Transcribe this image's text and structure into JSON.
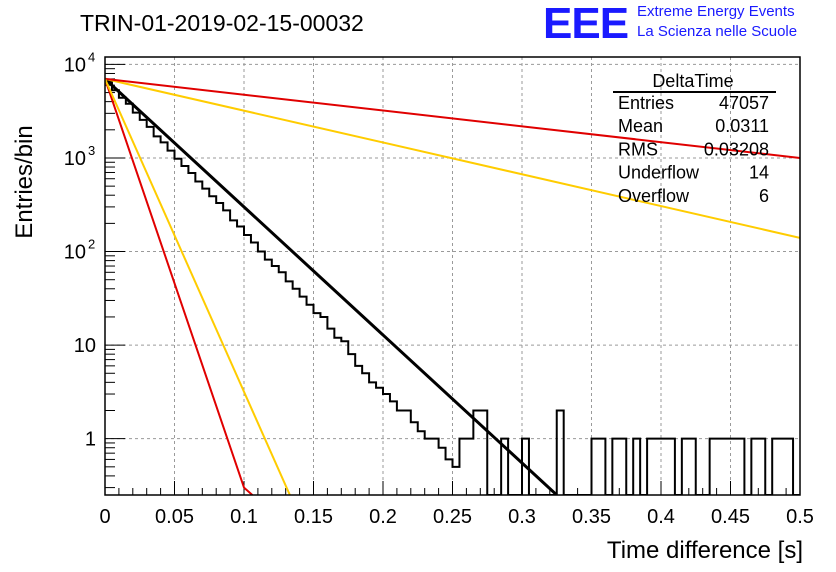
{
  "title": "TRIN-01-2019-02-15-00032",
  "logo": {
    "letters": "EEE",
    "line1": "Extreme Energy Events",
    "line2": "La Scienza nelle Scuole",
    "color": "#1a1aff"
  },
  "stats": {
    "name": "DeltaTime",
    "rows": [
      {
        "label": "Entries",
        "value": "47057"
      },
      {
        "label": "Mean",
        "value": "0.0311"
      },
      {
        "label": "RMS",
        "value": "0.03208"
      },
      {
        "label": "Underflow",
        "value": "14"
      },
      {
        "label": "Overflow",
        "value": "6"
      }
    ]
  },
  "chart_data": {
    "type": "line",
    "xlabel": "Time difference [s]",
    "ylabel": "Entries/bin",
    "xlim": [
      0,
      0.5
    ],
    "ylim": [
      0.25,
      12000
    ],
    "yscale": "log",
    "grid": true,
    "x_ticks": [
      "0",
      "0.05",
      "0.1",
      "0.15",
      "0.2",
      "0.25",
      "0.3",
      "0.35",
      "0.4",
      "0.45",
      "0.5"
    ],
    "y_ticks": [
      {
        "value": 1,
        "label": "1"
      },
      {
        "value": 10,
        "label": "10"
      },
      {
        "value": 100,
        "label": "10",
        "exp": "2"
      },
      {
        "value": 1000,
        "label": "10",
        "exp": "3"
      },
      {
        "value": 10000,
        "label": "10",
        "exp": "4"
      }
    ],
    "histogram": {
      "color": "#000000",
      "bin_width": 0.005,
      "points": [
        [
          0.0025,
          6500
        ],
        [
          0.0075,
          5300
        ],
        [
          0.0125,
          4400
        ],
        [
          0.0175,
          3800
        ],
        [
          0.0225,
          3050
        ],
        [
          0.0275,
          2550
        ],
        [
          0.0325,
          2150
        ],
        [
          0.0375,
          1700
        ],
        [
          0.0425,
          1470
        ],
        [
          0.0475,
          1200
        ],
        [
          0.0525,
          980
        ],
        [
          0.0575,
          820
        ],
        [
          0.0625,
          690
        ],
        [
          0.0675,
          560
        ],
        [
          0.0725,
          470
        ],
        [
          0.0775,
          390
        ],
        [
          0.0825,
          330
        ],
        [
          0.0875,
          275
        ],
        [
          0.0925,
          215
        ],
        [
          0.0975,
          185
        ],
        [
          0.1025,
          150
        ],
        [
          0.1075,
          125
        ],
        [
          0.1125,
          100
        ],
        [
          0.1175,
          82
        ],
        [
          0.1225,
          70
        ],
        [
          0.1275,
          60
        ],
        [
          0.1325,
          48
        ],
        [
          0.1375,
          40
        ],
        [
          0.1425,
          33
        ],
        [
          0.1475,
          27
        ],
        [
          0.1525,
          22
        ],
        [
          0.1575,
          20
        ],
        [
          0.1625,
          15
        ],
        [
          0.1675,
          12
        ],
        [
          0.1725,
          11
        ],
        [
          0.1775,
          8
        ],
        [
          0.1825,
          6
        ],
        [
          0.1875,
          5
        ],
        [
          0.1925,
          4
        ],
        [
          0.1975,
          3.5
        ],
        [
          0.2025,
          3
        ],
        [
          0.2075,
          2.5
        ],
        [
          0.2125,
          2
        ],
        [
          0.2175,
          2
        ],
        [
          0.2225,
          1.5
        ],
        [
          0.2275,
          1.2
        ],
        [
          0.2325,
          1
        ],
        [
          0.2375,
          1
        ],
        [
          0.2425,
          0.8
        ],
        [
          0.2475,
          0.6
        ],
        [
          0.2525,
          0.5
        ],
        [
          0.2575,
          1
        ],
        [
          0.2625,
          1
        ],
        [
          0.2675,
          2
        ],
        [
          0.2725,
          2
        ],
        [
          0.2775,
          0.01
        ],
        [
          0.2825,
          0.01
        ],
        [
          0.2875,
          1
        ],
        [
          0.2925,
          0.01
        ],
        [
          0.2975,
          0.01
        ],
        [
          0.3025,
          1
        ],
        [
          0.3075,
          0.01
        ],
        [
          0.3125,
          0.01
        ],
        [
          0.3175,
          0.01
        ],
        [
          0.3225,
          0.01
        ],
        [
          0.3275,
          2
        ],
        [
          0.3325,
          0.01
        ],
        [
          0.3375,
          0.01
        ],
        [
          0.3425,
          0.01
        ],
        [
          0.3475,
          0.01
        ],
        [
          0.3525,
          1
        ],
        [
          0.3575,
          1
        ],
        [
          0.3625,
          0.01
        ],
        [
          0.3675,
          1
        ],
        [
          0.3725,
          1
        ],
        [
          0.3775,
          0.01
        ],
        [
          0.3825,
          1
        ],
        [
          0.3875,
          0.01
        ],
        [
          0.3925,
          1
        ],
        [
          0.3975,
          1
        ],
        [
          0.4025,
          1
        ],
        [
          0.4075,
          1
        ],
        [
          0.4125,
          0.01
        ],
        [
          0.4175,
          1
        ],
        [
          0.4225,
          1
        ],
        [
          0.4275,
          0.01
        ],
        [
          0.4325,
          0.01
        ],
        [
          0.4375,
          1
        ],
        [
          0.4425,
          1
        ],
        [
          0.4475,
          1
        ],
        [
          0.4525,
          1
        ],
        [
          0.4575,
          1
        ],
        [
          0.4625,
          0.01
        ],
        [
          0.4675,
          1
        ],
        [
          0.4725,
          1
        ],
        [
          0.4775,
          0.01
        ],
        [
          0.4825,
          1
        ],
        [
          0.4875,
          1
        ],
        [
          0.4925,
          1
        ],
        [
          0.4975,
          0.01
        ]
      ]
    },
    "series": [
      {
        "color": "#000000",
        "width": 3,
        "points": [
          [
            0,
            7000
          ],
          [
            0.325,
            0.25
          ]
        ]
      },
      {
        "color": "#ffcc00",
        "width": 2,
        "points": [
          [
            0,
            7000
          ],
          [
            0.5,
            140
          ]
        ]
      },
      {
        "color": "#e00000",
        "width": 2,
        "points": [
          [
            0,
            7000
          ],
          [
            0.5,
            1000
          ]
        ]
      },
      {
        "color": "#e00000",
        "width": 2,
        "points": [
          [
            0,
            7000
          ],
          [
            0.1,
            0.3
          ],
          [
            0.106,
            0.25
          ]
        ]
      },
      {
        "color": "#ffcc00",
        "width": 2,
        "points": [
          [
            0,
            7000
          ],
          [
            0.133,
            0.25
          ]
        ]
      }
    ]
  }
}
